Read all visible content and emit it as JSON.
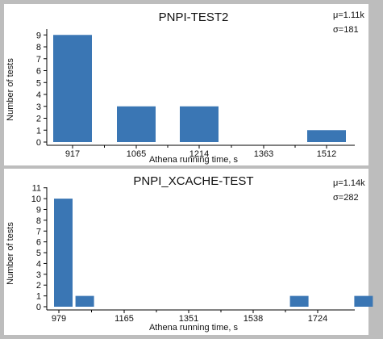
{
  "chart_data": [
    {
      "type": "bar",
      "title": "PNPI-TEST2",
      "stats": [
        "μ=1.11k",
        "σ=181"
      ],
      "xlabel": "Athena running time, s",
      "ylabel": "Number of tests",
      "xticks": [
        "917",
        "1065",
        "1214",
        "1363",
        "1512"
      ],
      "yticks": [
        "0",
        "1",
        "2",
        "3",
        "4",
        "5",
        "6",
        "7",
        "8",
        "9"
      ],
      "ylim": [
        0,
        9.9
      ],
      "bins": [
        {
          "center": "917",
          "value": 9
        },
        {
          "center": "1065",
          "value": 3
        },
        {
          "center": "1214",
          "value": 3
        },
        {
          "center": "1363",
          "value": 0
        },
        {
          "center": "1512",
          "value": 1
        }
      ],
      "color": "#3a76b4",
      "grid": false
    },
    {
      "type": "bar",
      "title": "PNPI_XCACHE-TEST",
      "stats": [
        "μ=1.14k",
        "σ=282"
      ],
      "xlabel": "Athena running time, s",
      "ylabel": "Number of tests",
      "xticks": [
        "979",
        "1165",
        "1351",
        "1538",
        "1724"
      ],
      "yticks": [
        "0",
        "1",
        "2",
        "3",
        "4",
        "5",
        "6",
        "7",
        "8",
        "9",
        "10",
        "11"
      ],
      "ylim": [
        0,
        11.5
      ],
      "bins": [
        {
          "index": 0,
          "value": 10
        },
        {
          "index": 1,
          "value": 1
        },
        {
          "index": 2,
          "value": 0
        },
        {
          "index": 3,
          "value": 0
        },
        {
          "index": 4,
          "value": 0
        },
        {
          "index": 5,
          "value": 0
        },
        {
          "index": 6,
          "value": 0
        },
        {
          "index": 7,
          "value": 0
        },
        {
          "index": 8,
          "value": 0
        },
        {
          "index": 9,
          "value": 0
        },
        {
          "index": 10,
          "value": 0
        },
        {
          "index": 11,
          "value": 1
        },
        {
          "index": 12,
          "value": 0
        },
        {
          "index": 13,
          "value": 0
        },
        {
          "index": 14,
          "value": 1
        }
      ],
      "color": "#3a76b4",
      "grid": false
    }
  ]
}
